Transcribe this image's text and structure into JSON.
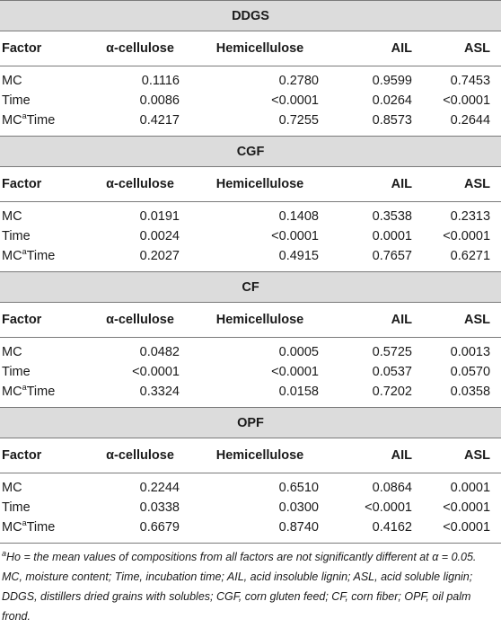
{
  "sections": [
    {
      "name": "DDGS",
      "headers": [
        "Factor",
        "α-cellulose",
        "Hemicellulose",
        "AIL",
        "ASL"
      ],
      "rows": [
        {
          "factor_pre": "MC",
          "factor_sup": "",
          "factor_post": "",
          "values": [
            "0.1116",
            "0.2780",
            "0.9599",
            "0.7453"
          ]
        },
        {
          "factor_pre": "Time",
          "factor_sup": "",
          "factor_post": "",
          "values": [
            "0.0086",
            "<0.0001",
            "0.0264",
            "<0.0001"
          ]
        },
        {
          "factor_pre": "MC",
          "factor_sup": "a",
          "factor_post": "Time",
          "values": [
            "0.4217",
            "0.7255",
            "0.8573",
            "0.2644"
          ]
        }
      ]
    },
    {
      "name": "CGF",
      "headers": [
        "Factor",
        "α-cellulose",
        "Hemicellulose",
        "AIL",
        "ASL"
      ],
      "rows": [
        {
          "factor_pre": "MC",
          "factor_sup": "",
          "factor_post": "",
          "values": [
            "0.0191",
            "0.1408",
            "0.3538",
            "0.2313"
          ]
        },
        {
          "factor_pre": "Time",
          "factor_sup": "",
          "factor_post": "",
          "values": [
            "0.0024",
            "<0.0001",
            "0.0001",
            "<0.0001"
          ]
        },
        {
          "factor_pre": "MC",
          "factor_sup": "a",
          "factor_post": "Time",
          "values": [
            "0.2027",
            "0.4915",
            "0.7657",
            "0.6271"
          ]
        }
      ]
    },
    {
      "name": "CF",
      "headers": [
        "Factor",
        "α-cellulose",
        "Hemicellulose",
        "AIL",
        "ASL"
      ],
      "rows": [
        {
          "factor_pre": "MC",
          "factor_sup": "",
          "factor_post": "",
          "values": [
            "0.0482",
            "0.0005",
            "0.5725",
            "0.0013"
          ]
        },
        {
          "factor_pre": "Time",
          "factor_sup": "",
          "factor_post": "",
          "values": [
            "<0.0001",
            "<0.0001",
            "0.0537",
            "0.0570"
          ]
        },
        {
          "factor_pre": "MC",
          "factor_sup": "a",
          "factor_post": "Time",
          "values": [
            "0.3324",
            "0.0158",
            "0.7202",
            "0.0358"
          ]
        }
      ]
    },
    {
      "name": "OPF",
      "headers": [
        "Factor",
        "α-cellulose",
        "Hemicellulose",
        "AIL",
        "ASL"
      ],
      "rows": [
        {
          "factor_pre": "MC",
          "factor_sup": "",
          "factor_post": "",
          "values": [
            "0.2244",
            "0.6510",
            "0.0864",
            "0.0001"
          ]
        },
        {
          "factor_pre": "Time",
          "factor_sup": "",
          "factor_post": "",
          "values": [
            "0.0338",
            "0.0300",
            "<0.0001",
            "<0.0001"
          ]
        },
        {
          "factor_pre": "MC",
          "factor_sup": "a",
          "factor_post": "Time",
          "values": [
            "0.6679",
            "0.8740",
            "0.4162",
            "<0.0001"
          ]
        }
      ]
    }
  ],
  "footnote": {
    "marker": "a",
    "text": "Ho = the mean values of compositions from all factors are not significantly different at α = 0.05. MC, moisture content; Time, incubation time; AIL, acid insoluble lignin; ASL, acid soluble lignin; DDGS, distillers dried grains with solubles; CGF, corn gluten feed; CF, corn fiber; OPF, oil palm frond."
  }
}
